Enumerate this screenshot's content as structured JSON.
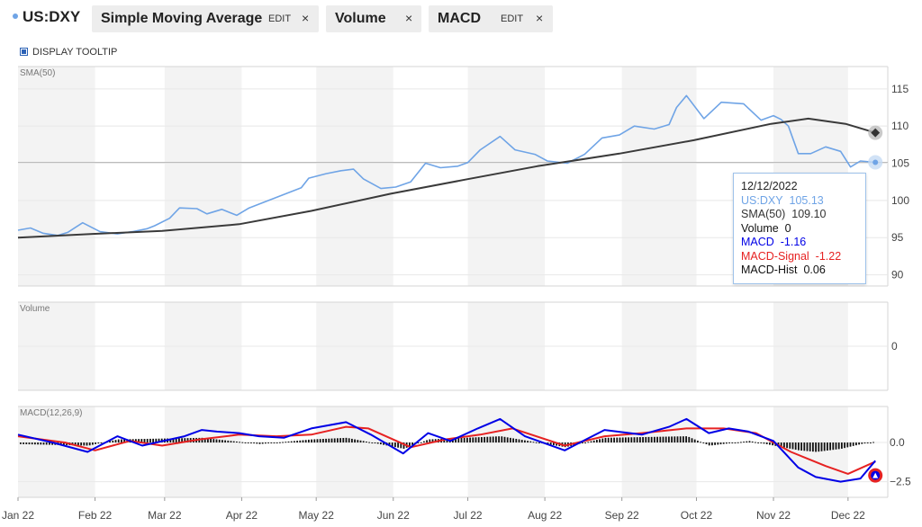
{
  "toolbar": {
    "ticker": "US:DXY",
    "chips": [
      {
        "label": "Simple Moving Average",
        "edit": "EDIT",
        "close": "×"
      },
      {
        "label": "Volume",
        "close": "×"
      },
      {
        "label": "MACD",
        "edit": "EDIT",
        "close": "×"
      }
    ]
  },
  "display_tooltip": "DISPLAY TOOLTIP",
  "colors": {
    "price": "#6fa4e6",
    "sma": "#3a3a3a",
    "macd": "#0000e6",
    "signal": "#e62222",
    "hist": "#111111"
  },
  "tooltip": {
    "date": "12/12/2022",
    "price": {
      "label": "US:DXY",
      "value": "105.13"
    },
    "sma": {
      "label": "SMA(50)",
      "value": "109.10"
    },
    "volume": {
      "label": "Volume",
      "value": "0"
    },
    "macd": {
      "label": "MACD",
      "value": "-1.16"
    },
    "signal": {
      "label": "MACD-Signal",
      "value": "-1.22"
    },
    "hist": {
      "label": "MACD-Hist",
      "value": "0.06"
    }
  },
  "chart_data": {
    "type": "line",
    "x_axis": {
      "type": "date",
      "tick_labels": [
        "Jan 22",
        "Feb 22",
        "Mar 22",
        "Apr 22",
        "May 22",
        "Jun 22",
        "Jul 22",
        "Aug 22",
        "Sep 22",
        "Oct 22",
        "Nov 22",
        "Dec 22"
      ]
    },
    "panels": [
      {
        "name": "price",
        "label": "SMA(50)",
        "ylim": [
          88.5,
          118
        ],
        "yticks": [
          90,
          95,
          100,
          105,
          110,
          115
        ],
        "series": [
          {
            "name": "US:DXY",
            "points": [
              [
                "2022-01-01",
                96.0
              ],
              [
                "2022-01-06",
                96.3
              ],
              [
                "2022-01-11",
                95.6
              ],
              [
                "2022-01-17",
                95.3
              ],
              [
                "2022-01-21",
                95.7
              ],
              [
                "2022-01-27",
                97.0
              ],
              [
                "2022-02-03",
                95.8
              ],
              [
                "2022-02-10",
                95.5
              ],
              [
                "2022-02-16",
                95.8
              ],
              [
                "2022-02-22",
                96.2
              ],
              [
                "2022-02-25",
                96.6
              ],
              [
                "2022-03-03",
                97.6
              ],
              [
                "2022-03-07",
                99.0
              ],
              [
                "2022-03-14",
                98.9
              ],
              [
                "2022-03-18",
                98.2
              ],
              [
                "2022-03-24",
                98.8
              ],
              [
                "2022-03-30",
                98.0
              ],
              [
                "2022-04-04",
                99.0
              ],
              [
                "2022-04-11",
                99.9
              ],
              [
                "2022-04-18",
                100.8
              ],
              [
                "2022-04-25",
                101.7
              ],
              [
                "2022-04-28",
                103.0
              ],
              [
                "2022-05-05",
                103.6
              ],
              [
                "2022-05-11",
                104.0
              ],
              [
                "2022-05-16",
                104.2
              ],
              [
                "2022-05-20",
                102.9
              ],
              [
                "2022-05-27",
                101.6
              ],
              [
                "2022-06-02",
                101.8
              ],
              [
                "2022-06-08",
                102.5
              ],
              [
                "2022-06-14",
                105.0
              ],
              [
                "2022-06-20",
                104.4
              ],
              [
                "2022-06-27",
                104.6
              ],
              [
                "2022-07-01",
                105.1
              ],
              [
                "2022-07-06",
                106.8
              ],
              [
                "2022-07-14",
                108.6
              ],
              [
                "2022-07-20",
                106.8
              ],
              [
                "2022-07-28",
                106.2
              ],
              [
                "2022-08-02",
                105.3
              ],
              [
                "2022-08-10",
                105.0
              ],
              [
                "2022-08-17",
                106.2
              ],
              [
                "2022-08-24",
                108.4
              ],
              [
                "2022-08-31",
                108.8
              ],
              [
                "2022-09-06",
                110.0
              ],
              [
                "2022-09-14",
                109.6
              ],
              [
                "2022-09-20",
                110.2
              ],
              [
                "2022-09-23",
                112.5
              ],
              [
                "2022-09-27",
                114.1
              ],
              [
                "2022-10-04",
                111.0
              ],
              [
                "2022-10-11",
                113.2
              ],
              [
                "2022-10-20",
                113.0
              ],
              [
                "2022-10-27",
                110.8
              ],
              [
                "2022-11-01",
                111.4
              ],
              [
                "2022-11-04",
                110.9
              ],
              [
                "2022-11-07",
                110.0
              ],
              [
                "2022-11-11",
                106.3
              ],
              [
                "2022-11-16",
                106.3
              ],
              [
                "2022-11-22",
                107.2
              ],
              [
                "2022-11-28",
                106.6
              ],
              [
                "2022-12-02",
                104.5
              ],
              [
                "2022-12-06",
                105.3
              ],
              [
                "2022-12-12",
                105.13
              ]
            ]
          },
          {
            "name": "SMA(50)",
            "points": [
              [
                "2022-01-01",
                95.0
              ],
              [
                "2022-01-31",
                95.5
              ],
              [
                "2022-02-28",
                95.9
              ],
              [
                "2022-03-31",
                96.8
              ],
              [
                "2022-04-29",
                98.6
              ],
              [
                "2022-05-31",
                100.9
              ],
              [
                "2022-06-30",
                102.8
              ],
              [
                "2022-07-29",
                104.6
              ],
              [
                "2022-08-31",
                106.3
              ],
              [
                "2022-09-30",
                108.1
              ],
              [
                "2022-10-31",
                110.3
              ],
              [
                "2022-11-15",
                111.0
              ],
              [
                "2022-11-30",
                110.3
              ],
              [
                "2022-12-12",
                109.1
              ]
            ]
          }
        ]
      },
      {
        "name": "volume",
        "label": "Volume",
        "yticks": [
          0
        ],
        "series": [
          {
            "name": "Volume",
            "points": [
              [
                "2022-12-12",
                0
              ]
            ]
          }
        ]
      },
      {
        "name": "macd",
        "label": "MACD(12,26,9)",
        "ylim": [
          -3.5,
          2.3
        ],
        "yticks": [
          0.0,
          -2.5
        ],
        "ytick_labels": [
          "0.0",
          "−2.5"
        ],
        "series": [
          {
            "name": "MACD",
            "points": [
              [
                "2022-01-01",
                0.5
              ],
              [
                "2022-01-15",
                0.0
              ],
              [
                "2022-01-29",
                -0.6
              ],
              [
                "2022-02-10",
                0.4
              ],
              [
                "2022-02-20",
                -0.2
              ],
              [
                "2022-03-09",
                0.4
              ],
              [
                "2022-03-16",
                0.8
              ],
              [
                "2022-03-22",
                0.7
              ],
              [
                "2022-03-31",
                0.6
              ],
              [
                "2022-04-08",
                0.4
              ],
              [
                "2022-04-18",
                0.3
              ],
              [
                "2022-04-29",
                0.9
              ],
              [
                "2022-05-13",
                1.3
              ],
              [
                "2022-05-23",
                0.5
              ],
              [
                "2022-06-05",
                -0.7
              ],
              [
                "2022-06-15",
                0.6
              ],
              [
                "2022-06-24",
                0.1
              ],
              [
                "2022-07-05",
                0.9
              ],
              [
                "2022-07-14",
                1.5
              ],
              [
                "2022-07-24",
                0.4
              ],
              [
                "2022-08-09",
                -0.5
              ],
              [
                "2022-08-25",
                0.8
              ],
              [
                "2022-09-09",
                0.5
              ],
              [
                "2022-09-20",
                1.0
              ],
              [
                "2022-09-27",
                1.5
              ],
              [
                "2022-10-06",
                0.6
              ],
              [
                "2022-10-14",
                0.9
              ],
              [
                "2022-10-22",
                0.7
              ],
              [
                "2022-11-01",
                0.1
              ],
              [
                "2022-11-11",
                -1.6
              ],
              [
                "2022-11-18",
                -2.2
              ],
              [
                "2022-11-28",
                -2.5
              ],
              [
                "2022-12-06",
                -2.3
              ],
              [
                "2022-12-12",
                -1.16
              ]
            ]
          },
          {
            "name": "MACD-Signal",
            "points": [
              [
                "2022-01-01",
                0.4
              ],
              [
                "2022-01-20",
                0.0
              ],
              [
                "2022-02-01",
                -0.5
              ],
              [
                "2022-02-15",
                0.1
              ],
              [
                "2022-02-28",
                -0.2
              ],
              [
                "2022-03-15",
                0.2
              ],
              [
                "2022-03-31",
                0.5
              ],
              [
                "2022-04-15",
                0.4
              ],
              [
                "2022-04-29",
                0.5
              ],
              [
                "2022-05-13",
                1.0
              ],
              [
                "2022-05-22",
                0.9
              ],
              [
                "2022-06-08",
                -0.3
              ],
              [
                "2022-06-22",
                0.2
              ],
              [
                "2022-07-06",
                0.5
              ],
              [
                "2022-07-19",
                0.9
              ],
              [
                "2022-08-09",
                -0.2
              ],
              [
                "2022-08-25",
                0.4
              ],
              [
                "2022-09-09",
                0.6
              ],
              [
                "2022-09-27",
                0.9
              ],
              [
                "2022-10-12",
                0.9
              ],
              [
                "2022-10-25",
                0.6
              ],
              [
                "2022-11-08",
                -0.6
              ],
              [
                "2022-11-22",
                -1.5
              ],
              [
                "2022-12-01",
                -2.0
              ],
              [
                "2022-12-12",
                -1.22
              ]
            ]
          },
          {
            "name": "MACD-Hist",
            "points": [
              [
                "2022-01-01",
                -0.1
              ],
              [
                "2022-01-29",
                -0.2
              ],
              [
                "2022-02-10",
                0.2
              ],
              [
                "2022-03-16",
                0.3
              ],
              [
                "2022-04-08",
                -0.1
              ],
              [
                "2022-04-29",
                0.2
              ],
              [
                "2022-05-13",
                0.3
              ],
              [
                "2022-06-05",
                -0.4
              ],
              [
                "2022-06-15",
                0.2
              ],
              [
                "2022-07-14",
                0.4
              ],
              [
                "2022-08-09",
                -0.3
              ],
              [
                "2022-08-25",
                0.3
              ],
              [
                "2022-09-27",
                0.4
              ],
              [
                "2022-10-06",
                -0.2
              ],
              [
                "2022-10-22",
                0.1
              ],
              [
                "2022-11-11",
                -0.5
              ],
              [
                "2022-11-18",
                -0.6
              ],
              [
                "2022-11-28",
                -0.4
              ],
              [
                "2022-12-06",
                -0.1
              ],
              [
                "2022-12-12",
                0.06
              ]
            ]
          }
        ]
      }
    ],
    "cursor_date": "2022-12-12"
  }
}
